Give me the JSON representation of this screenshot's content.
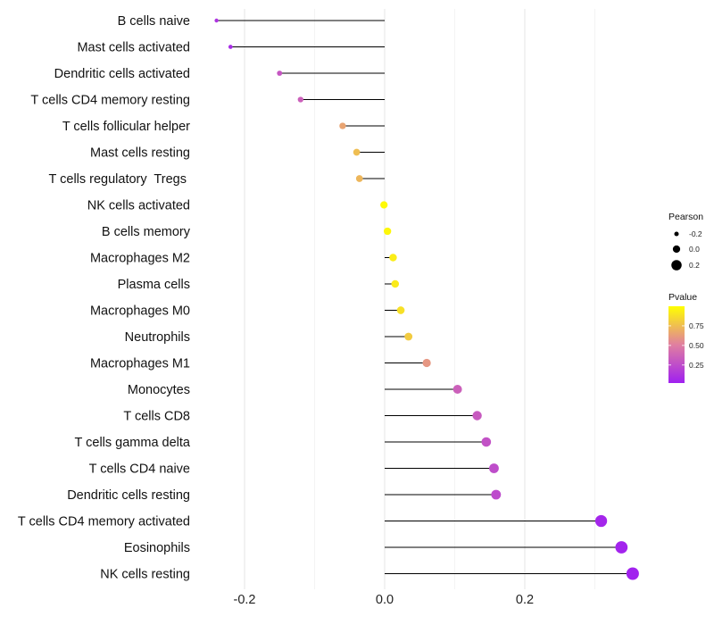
{
  "chart_data": {
    "type": "lollipop",
    "title": "",
    "xlabel": "",
    "ylabel": "",
    "xlim": [
      -0.245,
      0.35
    ],
    "xticks": [
      -0.2,
      0.0,
      0.2
    ],
    "xtick_labels": [
      "-0.2",
      "0.0",
      "0.2"
    ],
    "grid": true,
    "categories": [
      "B cells naive",
      "Mast cells activated",
      "Dendritic cells activated",
      "T cells CD4 memory resting",
      "T cells follicular helper",
      "Mast cells resting",
      "T cells regulatory  Tregs ",
      "NK cells activated",
      "B cells memory",
      "Macrophages M2",
      "Plasma cells",
      "Macrophages M0",
      "Neutrophils",
      "Macrophages M1",
      "Monocytes",
      "T cells CD8",
      "T cells gamma delta",
      "T cells CD4 naive",
      "Dendritic cells resting",
      "T cells CD4 memory activated",
      "Eosinophils",
      "NK cells resting"
    ],
    "pearson": [
      -0.24,
      -0.22,
      -0.15,
      -0.12,
      -0.06,
      -0.04,
      -0.036,
      -0.001,
      0.004,
      0.012,
      0.015,
      0.023,
      0.034,
      0.06,
      0.104,
      0.132,
      0.145,
      0.156,
      0.159,
      0.309,
      0.338,
      0.354
    ],
    "pvalue": [
      0.12,
      0.08,
      0.3,
      0.35,
      0.65,
      0.75,
      0.72,
      0.98,
      0.97,
      0.93,
      0.92,
      0.88,
      0.8,
      0.6,
      0.35,
      0.32,
      0.28,
      0.25,
      0.24,
      0.05,
      0.04,
      0.03
    ],
    "size_legend": {
      "title": "Pearson",
      "labels": [
        "-0.2",
        "0.0",
        "0.2"
      ],
      "values": [
        -0.2,
        0.0,
        0.2
      ]
    },
    "color_legend": {
      "title": "Pvalue",
      "labels": [
        "0.75",
        "0.50",
        "0.25"
      ],
      "values": [
        0.75,
        0.5,
        0.25
      ],
      "range": [
        0.02,
        1.0
      ],
      "low_color": "#a020f0",
      "high_color": "#ffff00"
    }
  }
}
